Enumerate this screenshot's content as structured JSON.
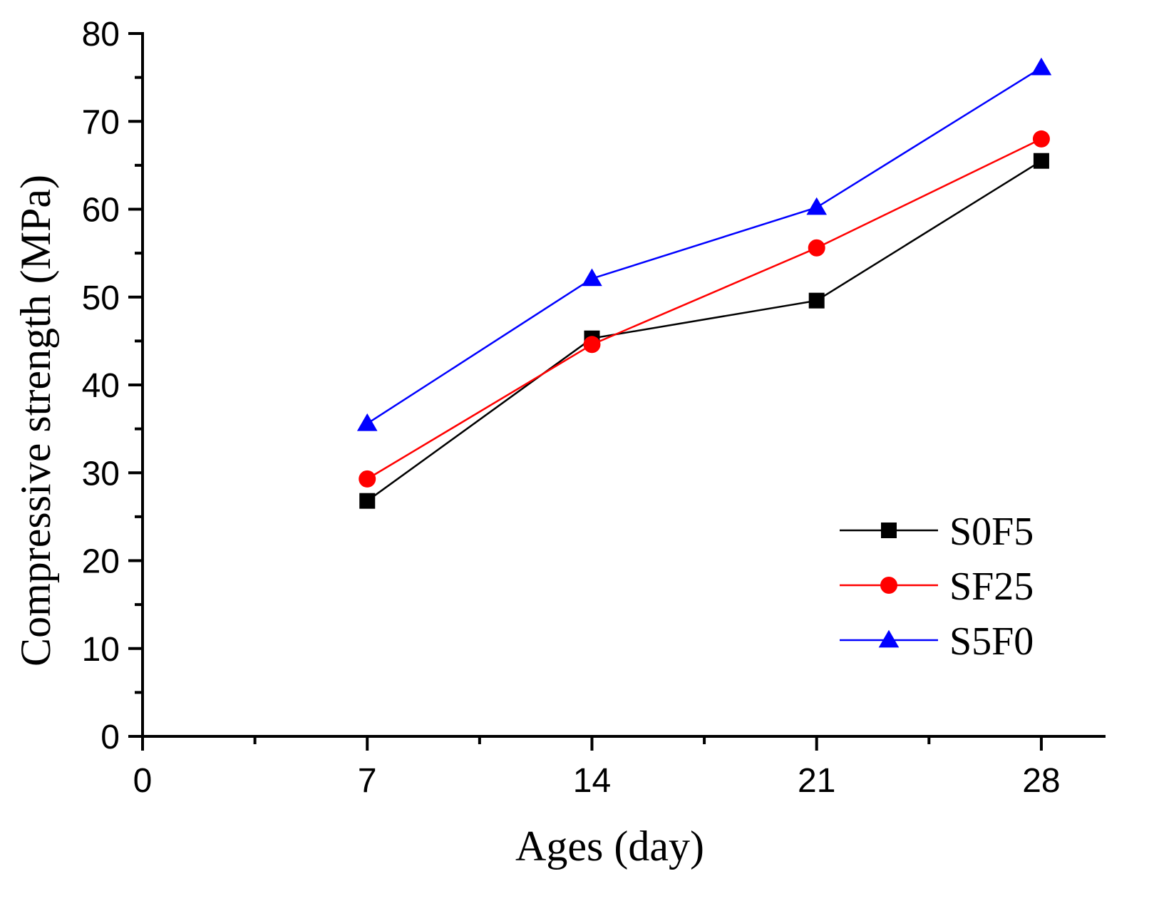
{
  "chart_data": {
    "type": "line",
    "title": "",
    "xlabel": "Ages (day)",
    "ylabel": "Compressive strength (MPa)",
    "xlim": [
      0,
      30
    ],
    "ylim": [
      0,
      80
    ],
    "x_ticks": [
      0,
      7,
      14,
      21,
      28
    ],
    "x_minor_ticks": [
      3.5,
      10.5,
      17.5,
      24.5
    ],
    "y_ticks": [
      0,
      10,
      20,
      30,
      40,
      50,
      60,
      70,
      80
    ],
    "y_minor_ticks": [
      5,
      15,
      25,
      35,
      45,
      55,
      65,
      75
    ],
    "x": [
      7,
      14,
      21,
      28
    ],
    "grid": false,
    "legend_position": "bottom-right",
    "series": [
      {
        "name": "S0F5",
        "color": "#000000",
        "marker": "square",
        "values": [
          26.8,
          45.3,
          49.6,
          65.5
        ]
      },
      {
        "name": "SF25",
        "color": "#ff0000",
        "marker": "circle",
        "values": [
          29.3,
          44.6,
          55.6,
          68.0
        ]
      },
      {
        "name": "S5F0",
        "color": "#0000ff",
        "marker": "triangle",
        "values": [
          35.6,
          52.1,
          60.2,
          76.1
        ]
      }
    ]
  }
}
